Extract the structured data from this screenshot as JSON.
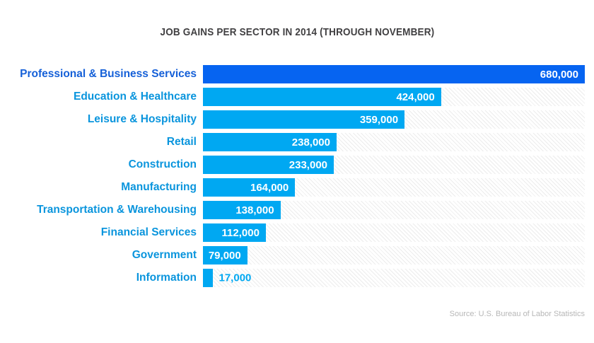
{
  "header": {
    "title": "JOB GAINS PER SECTOR IN 2014 (THROUGH NOVEMBER)"
  },
  "footer": {
    "source": "Source: U.S. Bureau of Labor Statistics"
  },
  "colors": {
    "bar_dark": "#0664f1",
    "bar_light": "#00a8f2",
    "label_dark": "#1560d8",
    "label_light": "#0a95dd",
    "title_text": "#414042",
    "source_text": "#b7b7b7",
    "value_text": "#ffffff",
    "hatch": "#ececec"
  },
  "chart_data": {
    "type": "bar",
    "orientation": "horizontal",
    "title": "JOB GAINS PER SECTOR IN 2014 (THROUGH NOVEMBER)",
    "categories": [
      "Professional & Business Services",
      "Education & Healthcare",
      "Leisure & Hospitality",
      "Retail",
      "Construction",
      "Manufacturing",
      "Transportation & Warehousing",
      "Financial Services",
      "Government",
      "Information"
    ],
    "values": [
      680000,
      424000,
      359000,
      238000,
      233000,
      164000,
      138000,
      112000,
      79000,
      17000
    ],
    "value_labels": [
      "680,000",
      "424,000",
      "359,000",
      "238,000",
      "233,000",
      "164,000",
      "138,000",
      "112,000",
      "79,000",
      "17,000"
    ],
    "xlim": [
      0,
      680000
    ],
    "highlight_index": 0,
    "outside_value_indices": [
      9
    ],
    "grid": false,
    "legend": false,
    "track_pattern": "diagonal-hatch",
    "source": "Source: U.S. Bureau of Labor Statistics"
  }
}
